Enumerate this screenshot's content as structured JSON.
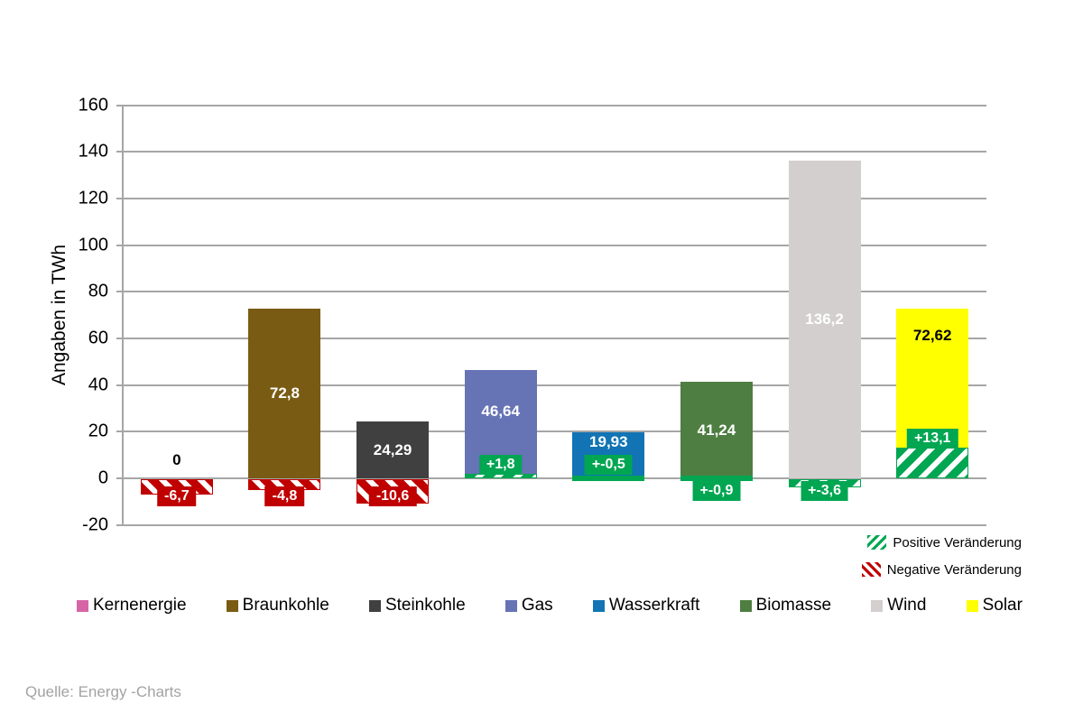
{
  "chart_data": {
    "type": "bar",
    "ylabel": "Angaben in TWh",
    "ylim": [
      -20,
      160
    ],
    "ytick_step": 20,
    "grid": true,
    "legend_position": "bottom",
    "change_positive_color": "#00a651",
    "change_negative_color": "#c00000",
    "bars": [
      {
        "category": "Kernenergie",
        "color": "#d765a6",
        "value": 0,
        "value_label": "0",
        "value_label_color": "#000000",
        "value_label_pos": "above",
        "change": -6.7,
        "change_label": "-6,7",
        "change_class": "negative",
        "change_label_placement": "below-zero"
      },
      {
        "category": "Braunkohle",
        "color": "#7a5b13",
        "value": 72.8,
        "value_label": "72,8",
        "value_label_color": "#ffffff",
        "value_label_pos": "center",
        "change": -4.8,
        "change_label": "-4,8",
        "change_class": "negative",
        "change_label_placement": "below-zero"
      },
      {
        "category": "Steinkohle",
        "color": "#404040",
        "value": 24.29,
        "value_label": "24,29",
        "value_label_color": "#ffffff",
        "value_label_pos": "center",
        "change": -10.6,
        "change_label": "-10,6",
        "change_class": "negative",
        "change_label_placement": "below-zero"
      },
      {
        "category": "Gas",
        "color": "#6673b5",
        "value": 46.64,
        "value_label": "46,64",
        "value_label_color": "#ffffff",
        "value_label_pos": "center",
        "change": 1.8,
        "change_label": "+1,8",
        "change_class": "positive",
        "change_label_placement": "at-zero-inside"
      },
      {
        "category": "Wasserkraft",
        "color": "#1274b4",
        "value": 19.93,
        "value_label": "19,93",
        "value_label_color": "#ffffff",
        "value_label_pos": "center",
        "change": -0.5,
        "change_label": "+-0,5",
        "change_class": "positive",
        "change_label_placement": "at-zero-inside"
      },
      {
        "category": "Biomasse",
        "color": "#4e7e41",
        "value": 41.24,
        "value_label": "41,24",
        "value_label_color": "#ffffff",
        "value_label_pos": "center",
        "change": -0.9,
        "change_label": "+-0,9",
        "change_class": "positive",
        "change_label_placement": "below-zero"
      },
      {
        "category": "Wind",
        "color": "#d3cfcf",
        "value": 136.2,
        "value_label": "136,2",
        "value_label_color": "#ffffff",
        "value_label_pos": "center",
        "change": -3.6,
        "change_label": "+-3,6",
        "change_class": "positive",
        "change_label_placement": "below-zero"
      },
      {
        "category": "Solar",
        "color": "#ffff00",
        "value": 72.62,
        "value_label": "72,62",
        "value_label_color": "#000000",
        "value_label_pos": "top",
        "change": 13.1,
        "change_label": "+13,1",
        "change_class": "positive",
        "change_label_placement": "above-change"
      }
    ]
  },
  "legend": {
    "positive_label": "Positive Veränderung",
    "negative_label": "Negative Veränderung"
  },
  "source": "Quelle: Energy -Charts"
}
